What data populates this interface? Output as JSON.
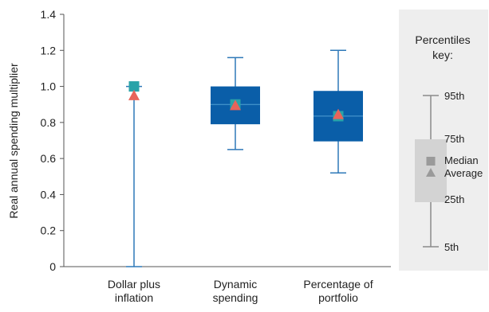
{
  "chart_data": {
    "type": "box",
    "ylabel": "Real annual spending multiplier",
    "ylim": [
      0,
      1.4
    ],
    "yticks": [
      0,
      0.2,
      0.4,
      0.6,
      0.8,
      1.0,
      1.2,
      1.4
    ],
    "ytick_labels": [
      "0",
      "0.2",
      "0.4",
      "0.6",
      "0.8",
      "1.0",
      "1.2",
      "1.4"
    ],
    "categories": [
      [
        "Dollar plus",
        "inflation"
      ],
      [
        "Dynamic",
        "spending"
      ],
      [
        "Percentage of",
        "portfolio"
      ]
    ],
    "boxes": [
      {
        "p5": 0.0,
        "p25": 1.0,
        "median": 1.0,
        "p75": 1.0,
        "p95": 1.0,
        "average": 0.95
      },
      {
        "p5": 0.65,
        "p25": 0.79,
        "median": 0.9,
        "p75": 1.0,
        "p95": 1.16,
        "average": 0.895
      },
      {
        "p5": 0.52,
        "p25": 0.695,
        "median": 0.835,
        "p75": 0.975,
        "p95": 1.2,
        "average": 0.845
      }
    ],
    "colors": {
      "box": "#0a5ea8",
      "whisker": "#2e78b8",
      "median": "#2aa3a8",
      "average": "#e8645a",
      "axis": "#555555"
    },
    "key": {
      "title_lines": [
        "Percentiles",
        "key:"
      ],
      "labels": {
        "p95": "95th",
        "p75": "75th",
        "median": "Median",
        "average": "Average",
        "p25": "25th",
        "p5": "5th"
      },
      "colors": {
        "panel": "#eeeeee",
        "box": "#d3d3d3",
        "marker": "#9a9a9a",
        "line": "#8a8a8a"
      }
    }
  }
}
